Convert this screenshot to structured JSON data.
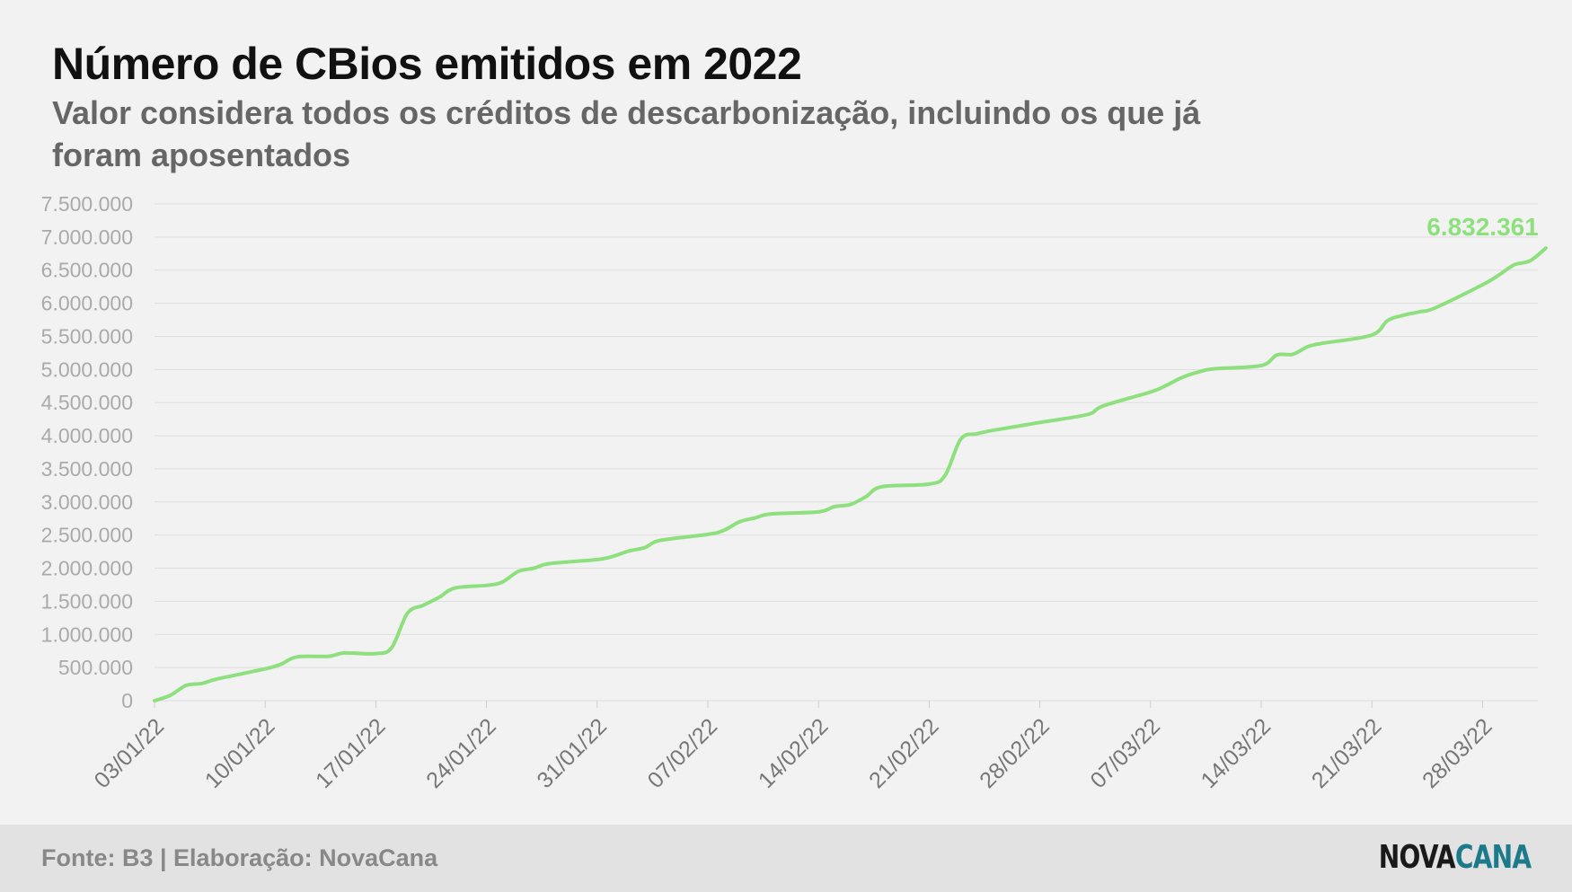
{
  "header": {
    "title": "Número de CBios emitidos em 2022",
    "subtitle": "Valor considera todos os créditos de descarbonização, incluindo os que já foram aposentados"
  },
  "footer": {
    "source": "Fonte: B3 | Elaboração: NovaCana",
    "logo_part1": "NOVA",
    "logo_part2": "CANA"
  },
  "colors": {
    "line": "#8ee07e",
    "grid": "#dedede",
    "tick_text": "#aaaaaa",
    "annotation": "#8ee07e"
  },
  "chart_data": {
    "type": "line",
    "title": "Número de CBios emitidos em 2022",
    "subtitle": "Valor considera todos os créditos de descarbonização, incluindo os que já foram aposentados",
    "ylim": [
      0,
      7500000
    ],
    "y_ticks": [
      0,
      500000,
      1000000,
      1500000,
      2000000,
      2500000,
      3000000,
      3500000,
      4000000,
      4500000,
      5000000,
      5500000,
      6000000,
      6500000,
      7000000,
      7500000
    ],
    "y_tick_labels": [
      "0",
      "500.000",
      "1.000.000",
      "1.500.000",
      "2.000.000",
      "2.500.000",
      "3.000.000",
      "3.500.000",
      "4.000.000",
      "4.500.000",
      "5.000.000",
      "5.500.000",
      "6.000.000",
      "6.500.000",
      "7.000.000",
      "7.500.000"
    ],
    "x_tick_labels": [
      "03/01/22",
      "10/01/22",
      "17/01/22",
      "24/01/22",
      "31/01/22",
      "07/02/22",
      "14/02/22",
      "21/02/22",
      "28/02/22",
      "07/03/22",
      "14/03/22",
      "21/03/22",
      "28/03/22"
    ],
    "x_tick_dates": [
      "2022-01-03",
      "2022-01-10",
      "2022-01-17",
      "2022-01-24",
      "2022-01-31",
      "2022-02-07",
      "2022-02-14",
      "2022-02-21",
      "2022-02-28",
      "2022-03-07",
      "2022-03-14",
      "2022-03-21",
      "2022-03-28"
    ],
    "grid": true,
    "series": [
      {
        "values": [
          {
            "x": "2022-01-03",
            "y": 0
          },
          {
            "x": "2022-01-04",
            "y": 80000
          },
          {
            "x": "2022-01-05",
            "y": 230000
          },
          {
            "x": "2022-01-06",
            "y": 260000
          },
          {
            "x": "2022-01-07",
            "y": 330000
          },
          {
            "x": "2022-01-10",
            "y": 480000
          },
          {
            "x": "2022-01-11",
            "y": 550000
          },
          {
            "x": "2022-01-12",
            "y": 660000
          },
          {
            "x": "2022-01-14",
            "y": 670000
          },
          {
            "x": "2022-01-15",
            "y": 720000
          },
          {
            "x": "2022-01-17",
            "y": 710000
          },
          {
            "x": "2022-01-18",
            "y": 800000
          },
          {
            "x": "2022-01-19",
            "y": 1320000
          },
          {
            "x": "2022-01-20",
            "y": 1440000
          },
          {
            "x": "2022-01-21",
            "y": 1560000
          },
          {
            "x": "2022-01-22",
            "y": 1700000
          },
          {
            "x": "2022-01-24",
            "y": 1740000
          },
          {
            "x": "2022-01-25",
            "y": 1790000
          },
          {
            "x": "2022-01-26",
            "y": 1950000
          },
          {
            "x": "2022-01-27",
            "y": 2000000
          },
          {
            "x": "2022-01-28",
            "y": 2070000
          },
          {
            "x": "2022-01-31",
            "y": 2130000
          },
          {
            "x": "2022-02-01",
            "y": 2180000
          },
          {
            "x": "2022-02-02",
            "y": 2260000
          },
          {
            "x": "2022-02-03",
            "y": 2310000
          },
          {
            "x": "2022-02-04",
            "y": 2420000
          },
          {
            "x": "2022-02-07",
            "y": 2510000
          },
          {
            "x": "2022-02-08",
            "y": 2570000
          },
          {
            "x": "2022-02-09",
            "y": 2700000
          },
          {
            "x": "2022-02-10",
            "y": 2760000
          },
          {
            "x": "2022-02-11",
            "y": 2820000
          },
          {
            "x": "2022-02-14",
            "y": 2850000
          },
          {
            "x": "2022-02-15",
            "y": 2930000
          },
          {
            "x": "2022-02-16",
            "y": 2960000
          },
          {
            "x": "2022-02-17",
            "y": 3080000
          },
          {
            "x": "2022-02-18",
            "y": 3230000
          },
          {
            "x": "2022-02-21",
            "y": 3270000
          },
          {
            "x": "2022-02-22",
            "y": 3400000
          },
          {
            "x": "2022-02-23",
            "y": 3950000
          },
          {
            "x": "2022-02-24",
            "y": 4030000
          },
          {
            "x": "2022-02-25",
            "y": 4080000
          },
          {
            "x": "2022-02-28",
            "y": 4200000
          },
          {
            "x": "2022-03-03",
            "y": 4320000
          },
          {
            "x": "2022-03-04",
            "y": 4450000
          },
          {
            "x": "2022-03-07",
            "y": 4660000
          },
          {
            "x": "2022-03-08",
            "y": 4760000
          },
          {
            "x": "2022-03-09",
            "y": 4880000
          },
          {
            "x": "2022-03-10",
            "y": 4960000
          },
          {
            "x": "2022-03-11",
            "y": 5010000
          },
          {
            "x": "2022-03-14",
            "y": 5060000
          },
          {
            "x": "2022-03-15",
            "y": 5220000
          },
          {
            "x": "2022-03-16",
            "y": 5230000
          },
          {
            "x": "2022-03-17",
            "y": 5350000
          },
          {
            "x": "2022-03-18",
            "y": 5400000
          },
          {
            "x": "2022-03-21",
            "y": 5520000
          },
          {
            "x": "2022-03-22",
            "y": 5740000
          },
          {
            "x": "2022-03-23",
            "y": 5820000
          },
          {
            "x": "2022-03-24",
            "y": 5870000
          },
          {
            "x": "2022-03-25",
            "y": 5930000
          },
          {
            "x": "2022-03-28",
            "y": 6280000
          },
          {
            "x": "2022-03-29",
            "y": 6420000
          },
          {
            "x": "2022-03-30",
            "y": 6580000
          },
          {
            "x": "2022-03-31",
            "y": 6640000
          },
          {
            "x": "2022-04-01",
            "y": 6832361
          }
        ]
      }
    ],
    "annotations": [
      {
        "x": "2022-04-01",
        "y": 6832361,
        "text": "6.832.361"
      }
    ]
  }
}
